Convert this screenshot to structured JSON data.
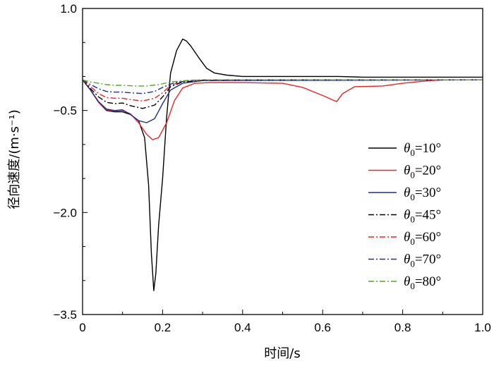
{
  "chart_data": {
    "type": "line",
    "xlabel": "时间/s",
    "ylabel": "径向速度/(m·s⁻¹)",
    "xlim": [
      0,
      1.0
    ],
    "ylim": [
      -3.5,
      1.0
    ],
    "xticks": [
      0,
      0.2,
      0.4,
      0.6,
      0.8,
      1.0
    ],
    "xtick_labels": [
      "0",
      "0.2",
      "0.4",
      "0.6",
      "0.8",
      "1.0"
    ],
    "yticks": [
      1.0,
      -0.5,
      -2.0,
      -3.5
    ],
    "ytick_labels": [
      "1.0",
      "−0.5",
      "−2.0",
      "−3.5"
    ],
    "grid": false,
    "legend_position": "right",
    "series": [
      {
        "name": "θ0=10°",
        "legend_symbol": "θ",
        "legend_subscript": "0",
        "legend_value": "=10°",
        "color": "#000000",
        "dash": "solid",
        "points": [
          [
            0,
            -0.05
          ],
          [
            0.02,
            -0.2
          ],
          [
            0.04,
            -0.38
          ],
          [
            0.06,
            -0.5
          ],
          [
            0.08,
            -0.52
          ],
          [
            0.1,
            -0.52
          ],
          [
            0.12,
            -0.56
          ],
          [
            0.14,
            -0.65
          ],
          [
            0.155,
            -0.9
          ],
          [
            0.165,
            -1.6
          ],
          [
            0.172,
            -2.6
          ],
          [
            0.178,
            -3.15
          ],
          [
            0.183,
            -2.9
          ],
          [
            0.19,
            -2.2
          ],
          [
            0.2,
            -1.5
          ],
          [
            0.21,
            -0.6
          ],
          [
            0.22,
            0.05
          ],
          [
            0.235,
            0.38
          ],
          [
            0.25,
            0.55
          ],
          [
            0.26,
            0.52
          ],
          [
            0.27,
            0.45
          ],
          [
            0.29,
            0.28
          ],
          [
            0.31,
            0.12
          ],
          [
            0.33,
            0.05
          ],
          [
            0.36,
            0.02
          ],
          [
            0.4,
            0.0
          ],
          [
            0.6,
            0.0
          ],
          [
            0.64,
            0.0
          ],
          [
            0.7,
            -0.01
          ],
          [
            1.0,
            -0.01
          ]
        ]
      },
      {
        "name": "θ0=20°",
        "legend_symbol": "θ",
        "legend_subscript": "0",
        "legend_value": "=20°",
        "color": "#ee2222",
        "dash": "solid",
        "points": [
          [
            0,
            -0.05
          ],
          [
            0.02,
            -0.2
          ],
          [
            0.04,
            -0.38
          ],
          [
            0.06,
            -0.49
          ],
          [
            0.08,
            -0.51
          ],
          [
            0.1,
            -0.5
          ],
          [
            0.12,
            -0.55
          ],
          [
            0.14,
            -0.68
          ],
          [
            0.16,
            -0.85
          ],
          [
            0.175,
            -0.93
          ],
          [
            0.19,
            -0.9
          ],
          [
            0.21,
            -0.68
          ],
          [
            0.23,
            -0.35
          ],
          [
            0.25,
            -0.17
          ],
          [
            0.28,
            -0.1
          ],
          [
            0.32,
            -0.09
          ],
          [
            0.4,
            -0.09
          ],
          [
            0.5,
            -0.1
          ],
          [
            0.55,
            -0.16
          ],
          [
            0.6,
            -0.28
          ],
          [
            0.635,
            -0.37
          ],
          [
            0.65,
            -0.25
          ],
          [
            0.68,
            -0.15
          ],
          [
            0.75,
            -0.14
          ],
          [
            0.8,
            -0.1
          ],
          [
            0.85,
            -0.07
          ],
          [
            0.9,
            -0.05
          ],
          [
            1.0,
            -0.05
          ]
        ]
      },
      {
        "name": "θ0=30°",
        "legend_symbol": "θ",
        "legend_subscript": "0",
        "legend_value": "=30°",
        "color": "#1f2f8f",
        "dash": "solid",
        "points": [
          [
            0,
            -0.05
          ],
          [
            0.02,
            -0.2
          ],
          [
            0.04,
            -0.37
          ],
          [
            0.06,
            -0.48
          ],
          [
            0.08,
            -0.5
          ],
          [
            0.1,
            -0.49
          ],
          [
            0.12,
            -0.56
          ],
          [
            0.14,
            -0.65
          ],
          [
            0.16,
            -0.68
          ],
          [
            0.18,
            -0.62
          ],
          [
            0.2,
            -0.4
          ],
          [
            0.22,
            -0.2
          ],
          [
            0.25,
            -0.1
          ],
          [
            0.3,
            -0.06
          ],
          [
            0.4,
            -0.06
          ],
          [
            1.0,
            -0.05
          ]
        ]
      },
      {
        "name": "θ0=45°",
        "legend_symbol": "θ",
        "legend_subscript": "0",
        "legend_value": "=45°",
        "color": "#000000",
        "dash": "8,3,2,3",
        "points": [
          [
            0,
            -0.05
          ],
          [
            0.02,
            -0.18
          ],
          [
            0.04,
            -0.3
          ],
          [
            0.06,
            -0.38
          ],
          [
            0.08,
            -0.4
          ],
          [
            0.1,
            -0.39
          ],
          [
            0.12,
            -0.43
          ],
          [
            0.15,
            -0.47
          ],
          [
            0.18,
            -0.42
          ],
          [
            0.2,
            -0.3
          ],
          [
            0.22,
            -0.15
          ],
          [
            0.25,
            -0.08
          ],
          [
            0.3,
            -0.06
          ],
          [
            0.4,
            -0.05
          ],
          [
            1.0,
            -0.05
          ]
        ]
      },
      {
        "name": "θ0=60°",
        "legend_symbol": "θ",
        "legend_subscript": "0",
        "legend_value": "=60°",
        "color": "#ee2222",
        "dash": "8,3,2,3",
        "points": [
          [
            0,
            -0.05
          ],
          [
            0.02,
            -0.15
          ],
          [
            0.04,
            -0.25
          ],
          [
            0.06,
            -0.31
          ],
          [
            0.08,
            -0.32
          ],
          [
            0.1,
            -0.32
          ],
          [
            0.12,
            -0.34
          ],
          [
            0.15,
            -0.36
          ],
          [
            0.18,
            -0.32
          ],
          [
            0.2,
            -0.24
          ],
          [
            0.22,
            -0.13
          ],
          [
            0.25,
            -0.07
          ],
          [
            0.3,
            -0.05
          ],
          [
            1.0,
            -0.05
          ]
        ]
      },
      {
        "name": "θ0=70°",
        "legend_symbol": "θ",
        "legend_subscript": "0",
        "legend_value": "=70°",
        "color": "#1f2f8f",
        "dash": "8,3,2,3",
        "points": [
          [
            0,
            -0.05
          ],
          [
            0.02,
            -0.12
          ],
          [
            0.04,
            -0.18
          ],
          [
            0.06,
            -0.22
          ],
          [
            0.08,
            -0.23
          ],
          [
            0.1,
            -0.23
          ],
          [
            0.12,
            -0.24
          ],
          [
            0.15,
            -0.25
          ],
          [
            0.18,
            -0.22
          ],
          [
            0.2,
            -0.16
          ],
          [
            0.23,
            -0.09
          ],
          [
            0.27,
            -0.06
          ],
          [
            0.3,
            -0.05
          ],
          [
            1.0,
            -0.05
          ]
        ]
      },
      {
        "name": "θ0=80°",
        "legend_symbol": "θ",
        "legend_subscript": "0",
        "legend_value": "=80°",
        "color": "#55aa22",
        "dash": "8,3,2,3",
        "points": [
          [
            0,
            -0.05
          ],
          [
            0.02,
            -0.08
          ],
          [
            0.04,
            -0.1
          ],
          [
            0.06,
            -0.12
          ],
          [
            0.08,
            -0.13
          ],
          [
            0.1,
            -0.13
          ],
          [
            0.13,
            -0.14
          ],
          [
            0.16,
            -0.14
          ],
          [
            0.19,
            -0.12
          ],
          [
            0.22,
            -0.08
          ],
          [
            0.26,
            -0.06
          ],
          [
            0.3,
            -0.05
          ],
          [
            1.0,
            -0.05
          ]
        ]
      }
    ]
  }
}
